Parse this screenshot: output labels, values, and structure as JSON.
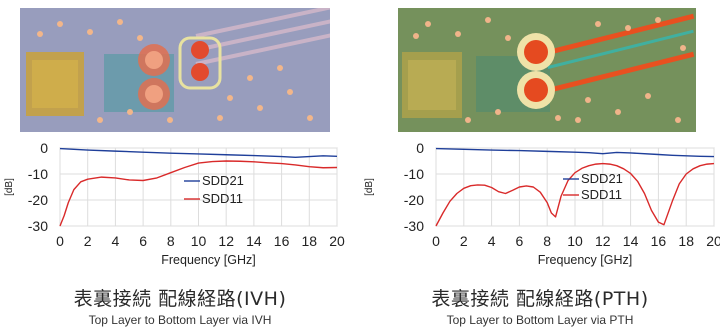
{
  "panels": [
    {
      "id": "ivh",
      "pcb": {
        "base_color": "#8f9ab8",
        "pad_color": "#e24a2e",
        "trace_color": "#c9b3c7"
      },
      "title_jp": "表裏接続 配線経路(IVH)",
      "title_en": "Top Layer to Bottom Layer via IVH"
    },
    {
      "id": "pth",
      "pcb": {
        "base_color": "#6f8a5b",
        "pad_color": "#e54a20",
        "trace_color": "#e85020"
      },
      "title_jp": "表裏接続 配線経路(PTH)",
      "title_en": "Top Layer to Bottom Layer via PTH"
    }
  ],
  "chart_data": [
    {
      "type": "line",
      "xlabel": "Frequency [GHz]",
      "ylabel": "[dB]",
      "xlim": [
        0,
        20
      ],
      "ylim": [
        -30,
        0
      ],
      "xticks": [
        "0",
        "2",
        "4",
        "6",
        "8",
        "10",
        "12",
        "14",
        "16",
        "18",
        "20"
      ],
      "yticks": [
        "0",
        "-10",
        "-20",
        "-30"
      ],
      "grid": true,
      "legend": "center-right",
      "series": [
        {
          "name": "SDD21",
          "color": "#1f3f9a",
          "x": [
            0,
            1,
            2,
            4,
            6,
            8,
            10,
            12,
            14,
            16,
            17,
            18,
            19,
            20
          ],
          "y": [
            -0.2,
            -0.5,
            -0.8,
            -1.2,
            -1.6,
            -2.0,
            -2.3,
            -2.6,
            -2.9,
            -3.3,
            -3.6,
            -3.3,
            -3.0,
            -3.2
          ]
        },
        {
          "name": "SDD11",
          "color": "#d92a2a",
          "x": [
            0,
            0.3,
            0.6,
            1,
            1.5,
            2,
            3,
            4,
            5,
            6,
            7,
            8,
            9,
            10,
            11,
            12,
            13,
            14,
            15,
            16,
            17,
            18,
            19,
            20
          ],
          "y": [
            -30,
            -26,
            -21,
            -16,
            -13,
            -12,
            -11.2,
            -11.5,
            -12.3,
            -12.5,
            -11.5,
            -9.5,
            -7.5,
            -5.8,
            -5.2,
            -5.0,
            -5.1,
            -5.3,
            -5.7,
            -6.0,
            -6.5,
            -7.2,
            -7.6,
            -7.5
          ]
        }
      ]
    },
    {
      "type": "line",
      "xlabel": "Frequency [GHz]",
      "ylabel": "[dB]",
      "xlim": [
        0,
        20
      ],
      "ylim": [
        -30,
        0
      ],
      "xticks": [
        "0",
        "2",
        "4",
        "6",
        "8",
        "10",
        "12",
        "14",
        "16",
        "18",
        "20"
      ],
      "yticks": [
        "0",
        "-10",
        "-20",
        "-30"
      ],
      "grid": true,
      "legend": "center-right",
      "series": [
        {
          "name": "SDD21",
          "color": "#1f3f9a",
          "x": [
            0,
            2,
            4,
            6,
            8,
            10,
            11,
            12,
            13,
            14,
            16,
            17,
            18,
            19,
            20
          ],
          "y": [
            -0.2,
            -0.5,
            -0.8,
            -1.0,
            -1.3,
            -1.6,
            -1.8,
            -2.2,
            -1.7,
            -1.9,
            -2.5,
            -2.8,
            -3.0,
            -3.2,
            -3.3
          ]
        },
        {
          "name": "SDD11",
          "color": "#d92a2a",
          "x": [
            0,
            0.5,
            1,
            1.5,
            2,
            2.5,
            3,
            3.5,
            4,
            4.5,
            5,
            5.5,
            6,
            6.5,
            7,
            7.5,
            8,
            8.3,
            8.6,
            9,
            9.5,
            10,
            10.5,
            11,
            11.5,
            12,
            12.5,
            13,
            13.5,
            14,
            14.5,
            15,
            15.5,
            16,
            16.4,
            17,
            17.5,
            18,
            18.5,
            19,
            19.5,
            20
          ],
          "y": [
            -30,
            -25,
            -20.5,
            -17.5,
            -15.5,
            -14.5,
            -14.2,
            -14.3,
            -15.2,
            -16.8,
            -17.5,
            -16.3,
            -15.0,
            -14.6,
            -15.0,
            -17.0,
            -21.0,
            -25.0,
            -26.5,
            -18.5,
            -12.5,
            -9.5,
            -7.8,
            -6.8,
            -6.2,
            -6.0,
            -6.2,
            -6.8,
            -8.0,
            -9.8,
            -12.8,
            -17.5,
            -24.0,
            -28.5,
            -29.5,
            -20.5,
            -13.8,
            -10.0,
            -8.0,
            -6.8,
            -6.2,
            -6.0
          ]
        }
      ]
    }
  ]
}
